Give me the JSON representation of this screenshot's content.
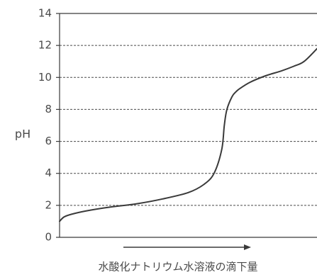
{
  "chart_data": {
    "type": "line",
    "title": "",
    "ylabel": "pH",
    "xlabel": "水酸化ナトリウム水溶液の滴下量",
    "ylim": [
      0,
      14
    ],
    "yticks": [
      0,
      2,
      4,
      6,
      8,
      10,
      12,
      14
    ],
    "x_axis_direction": "left-to-right",
    "x_ticks_shown": false,
    "grid": "horizontal dashed at 2, 4, 6, 8, 10, 12",
    "series": [
      {
        "x": [
          0,
          2,
          6,
          12,
          20,
          30,
          40,
          50,
          56,
          60,
          63,
          64,
          65,
          67,
          68.5,
          70,
          74,
          80,
          86,
          91,
          95,
          100
        ],
        "y": [
          1.0,
          1.3,
          1.5,
          1.7,
          1.9,
          2.1,
          2.4,
          2.8,
          3.3,
          4.0,
          5.5,
          7.0,
          8.0,
          8.8,
          9.1,
          9.3,
          9.7,
          10.1,
          10.4,
          10.7,
          11.0,
          11.8
        ]
      }
    ],
    "colors": {
      "line": "#3a3a3a",
      "axis": "#3a3a3a",
      "grid": "#4a4a4a",
      "text": "#4a4a4a"
    }
  }
}
